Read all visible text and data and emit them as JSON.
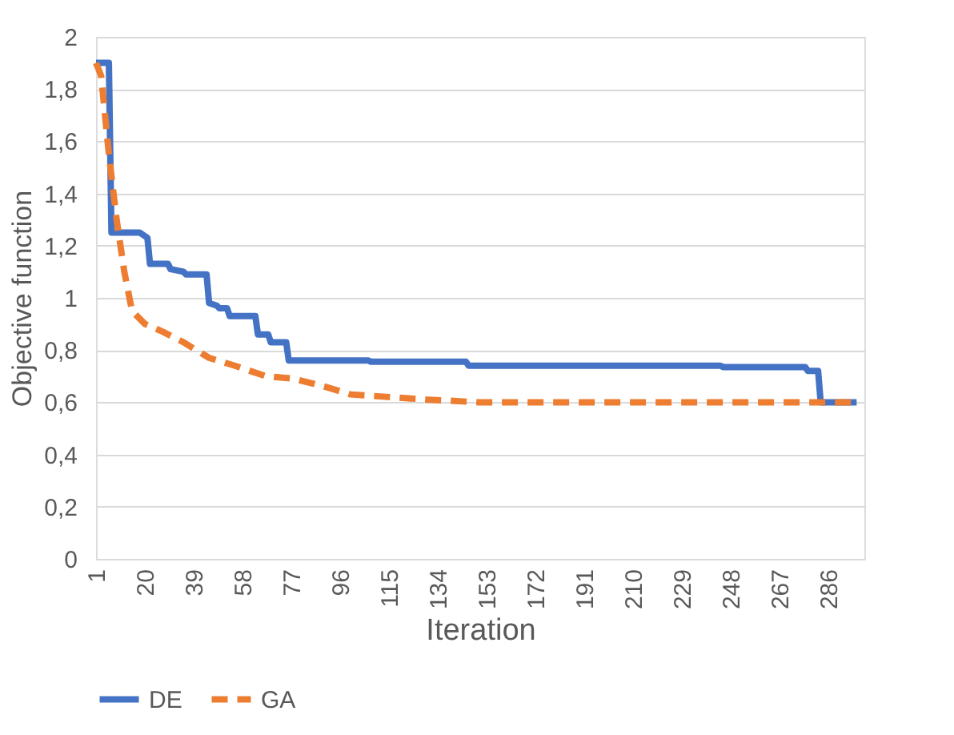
{
  "chart_data": {
    "type": "line",
    "xlabel": "Iteration",
    "ylabel": "Objective function",
    "xlim": [
      1,
      300
    ],
    "xticks": [
      1,
      20,
      39,
      58,
      77,
      96,
      115,
      134,
      153,
      172,
      191,
      210,
      229,
      248,
      267,
      286
    ],
    "ylim": [
      0,
      2
    ],
    "yticks": [
      0,
      {
        "value": 0.2,
        "label": "0,2"
      },
      {
        "value": 0.4,
        "label": "0,4"
      },
      {
        "value": 0.6,
        "label": "0,6"
      },
      {
        "value": 0.8,
        "label": "0,8"
      },
      1,
      {
        "value": 1.2,
        "label": "1,2"
      },
      {
        "value": 1.4,
        "label": "1,4"
      },
      {
        "value": 1.6,
        "label": "1,6"
      },
      {
        "value": 1.8,
        "label": "1,8"
      },
      2
    ],
    "grid": "y",
    "legend": "bottom",
    "marker": "none",
    "series": [
      {
        "name": "DE",
        "color": "#4472c4",
        "line_style": "solid",
        "x": [
          1,
          6,
          7,
          18,
          21,
          22,
          29,
          30,
          35,
          36,
          44,
          45,
          48,
          49,
          52,
          53,
          63,
          64,
          68,
          69,
          75,
          76,
          107,
          108,
          145,
          146,
          244,
          245,
          277,
          278,
          282,
          283,
          297
        ],
        "values": [
          1.9,
          1.9,
          1.25,
          1.25,
          1.23,
          1.13,
          1.13,
          1.11,
          1.1,
          1.09,
          1.09,
          0.98,
          0.97,
          0.96,
          0.96,
          0.93,
          0.93,
          0.86,
          0.86,
          0.83,
          0.83,
          0.76,
          0.76,
          0.755,
          0.755,
          0.74,
          0.74,
          0.735,
          0.735,
          0.72,
          0.72,
          0.6,
          0.6
        ]
      },
      {
        "name": "GA",
        "color": "#ed7d31",
        "line_style": "dashed",
        "x": [
          1,
          3,
          6,
          9,
          12,
          15,
          20,
          27,
          35,
          45,
          55,
          67,
          78,
          90,
          100,
          115,
          130,
          150,
          200,
          250,
          297
        ],
        "values": [
          1.9,
          1.85,
          1.55,
          1.3,
          1.1,
          0.95,
          0.9,
          0.87,
          0.83,
          0.77,
          0.74,
          0.7,
          0.69,
          0.66,
          0.63,
          0.62,
          0.61,
          0.6,
          0.6,
          0.6,
          0.6
        ]
      }
    ]
  }
}
